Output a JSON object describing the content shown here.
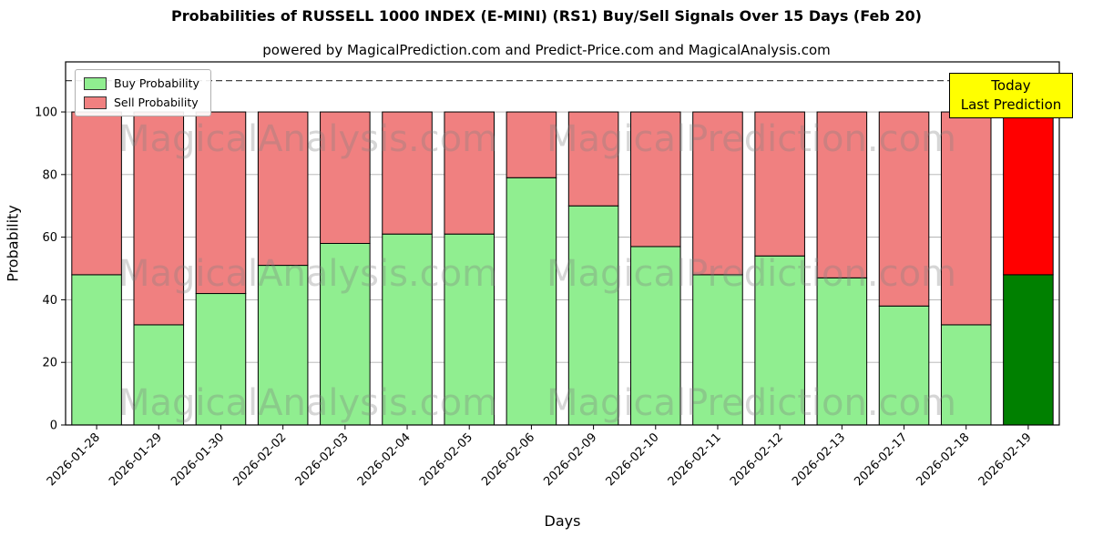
{
  "title": "Probabilities of RUSSELL 1000 INDEX (E-MINI) (RS1) Buy/Sell Signals Over 15 Days (Feb 20)",
  "subtitle": "powered by MagicalPrediction.com and Predict-Price.com and MagicalAnalysis.com",
  "annotation": {
    "line1": "Today",
    "line2": "Last Prediction"
  },
  "watermarks": {
    "left": "MagicalAnalysis.com",
    "right": "MagicalPrediction.com"
  },
  "chart_data": {
    "type": "bar",
    "stacked": true,
    "title": "Probabilities of RUSSELL 1000 INDEX (E-MINI) (RS1) Buy/Sell Signals Over 15 Days (Feb 20)",
    "xlabel": "Days",
    "ylabel": "Probability",
    "ylim": [
      0,
      116
    ],
    "yticks": [
      0,
      20,
      40,
      60,
      80,
      100
    ],
    "dashed_line_y": 110,
    "grid": "horizontal",
    "legend_position": "upper left",
    "categories": [
      "2026-01-28",
      "2026-01-29",
      "2026-01-30",
      "2026-02-02",
      "2026-02-03",
      "2026-02-04",
      "2026-02-05",
      "2026-02-06",
      "2026-02-09",
      "2026-02-10",
      "2026-02-11",
      "2026-02-12",
      "2026-02-13",
      "2026-02-17",
      "2026-02-18",
      "2026-02-19"
    ],
    "series": [
      {
        "name": "Buy Probability",
        "color": "#90EE90",
        "values": [
          48,
          32,
          42,
          51,
          58,
          61,
          61,
          79,
          70,
          57,
          48,
          54,
          47,
          38,
          32,
          48
        ]
      },
      {
        "name": "Sell Probability",
        "color": "#F08080",
        "values": [
          52,
          68,
          58,
          49,
          42,
          39,
          39,
          21,
          30,
          43,
          52,
          46,
          53,
          62,
          68,
          52
        ]
      }
    ],
    "last_bar_colors": {
      "buy": "#008000",
      "sell": "#FF0000"
    },
    "bar_edge_color": "#000000"
  }
}
